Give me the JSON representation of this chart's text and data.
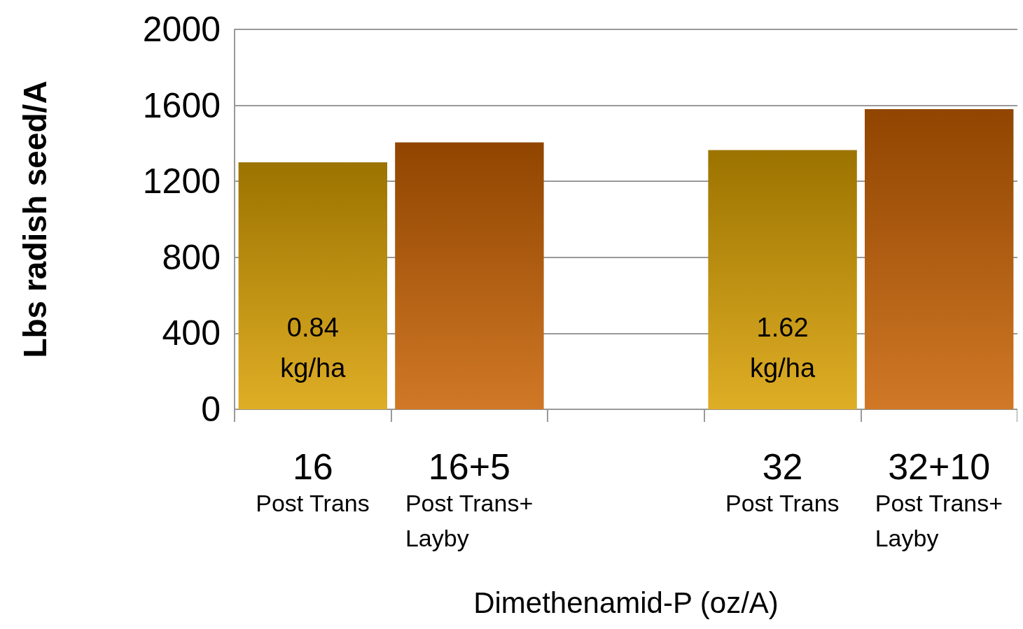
{
  "chart_data": {
    "type": "bar",
    "xlabel": "Dimethenamid-P (oz/A)",
    "ylabel": "Lbs radish seed/A",
    "categories": [
      "16\nPost Trans",
      "16+5\nPost Trans+\nLayby",
      null,
      "32\nPost Trans",
      "32+10\nPost Trans+\nLayby"
    ],
    "values": [
      1300,
      1405,
      null,
      1365,
      1580
    ],
    "colors": [
      "#d9a000",
      "#c86000",
      null,
      "#d9a000",
      "#c86000"
    ],
    "ylim": [
      0,
      2000
    ],
    "yticks": [
      0,
      400,
      800,
      1200,
      1600,
      2000
    ],
    "grid": "y",
    "annotations": [
      "0.84\nkg/ha",
      "1.62\nkg/ha"
    ]
  }
}
